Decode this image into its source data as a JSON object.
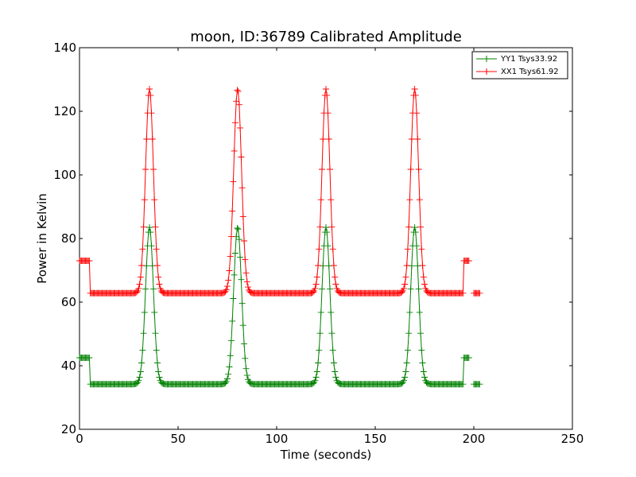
{
  "chart_data": {
    "type": "line",
    "title": "moon, ID:36789 Calibrated Amplitude",
    "xlabel": "Time (seconds)",
    "ylabel": "Power in Kelvin",
    "xlim": [
      0,
      250
    ],
    "ylim": [
      20,
      140
    ],
    "xticks": [
      0,
      50,
      100,
      150,
      200,
      250
    ],
    "yticks": [
      20,
      40,
      60,
      80,
      100,
      120,
      140
    ],
    "grid": false,
    "legend_position": "top-right",
    "marker": "+",
    "series": [
      {
        "name": "YY1 Tsys33.92",
        "color": "#008000",
        "baseline": 34.2,
        "cal_level": 42.5,
        "peak_times": [
          35.5,
          80.2,
          125,
          170
        ],
        "peak_value": 83.5,
        "peak_sigma": 2.0,
        "cal_segments": [
          [
            0,
            5.5
          ],
          [
            195,
            198
          ]
        ],
        "gaps": [
          [
            198,
            200
          ]
        ],
        "x_range": [
          0,
          203
        ],
        "sample_step": 0.5
      },
      {
        "name": "XX1 Tsys61.92",
        "color": "#ff0000",
        "baseline": 62.8,
        "cal_level": 73.0,
        "peak_times": [
          35.5,
          80.2,
          125,
          170
        ],
        "peak_value": 127,
        "peak_sigma": 2.0,
        "cal_segments": [
          [
            0,
            5.5
          ],
          [
            195,
            198
          ]
        ],
        "gaps": [
          [
            198,
            200
          ]
        ],
        "x_range": [
          0,
          203
        ],
        "sample_step": 0.5
      }
    ]
  }
}
